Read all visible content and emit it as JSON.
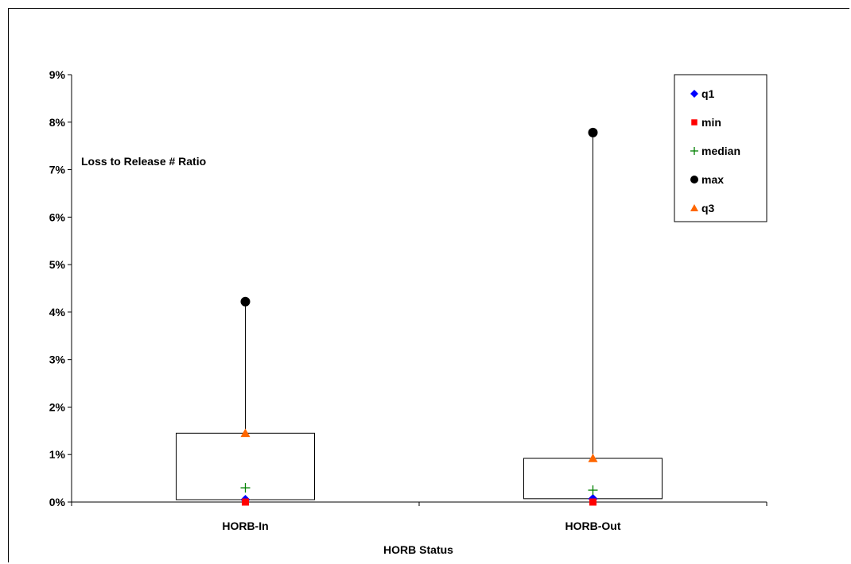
{
  "chart_data": {
    "type": "box",
    "title": "",
    "annotation": "Loss to Release # Ratio",
    "xlabel": "HORB Status",
    "ylabel": "",
    "ylim": [
      0,
      9
    ],
    "y_unit": "%",
    "y_ticks": [
      "0%",
      "1%",
      "2%",
      "3%",
      "4%",
      "5%",
      "6%",
      "7%",
      "8%",
      "9%"
    ],
    "categories": [
      "HORB-In",
      "HORB-Out"
    ],
    "series": [
      {
        "name": "q1",
        "marker": "diamond",
        "color": "#0000ff",
        "values": [
          0.05,
          0.07
        ]
      },
      {
        "name": "min",
        "marker": "square",
        "color": "#ff0000",
        "values": [
          0.0,
          0.0
        ]
      },
      {
        "name": "median",
        "marker": "plus",
        "color": "#008000",
        "values": [
          0.3,
          0.25
        ]
      },
      {
        "name": "max",
        "marker": "circle",
        "color": "#000000",
        "values": [
          4.22,
          7.78
        ]
      },
      {
        "name": "q3",
        "marker": "triangle",
        "color": "#ff6600",
        "values": [
          1.45,
          0.92
        ]
      }
    ],
    "grid": false,
    "legend_position": "top-right"
  }
}
